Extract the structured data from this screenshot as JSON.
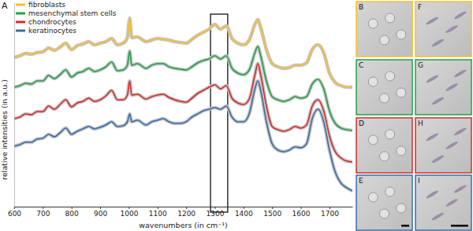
{
  "chart_data": {
    "type": "line",
    "panel_label": "A",
    "x_label": "wavenumbers (in cm⁻¹)",
    "y_label": "relative intensities (in a.u.)",
    "xlim": [
      600,
      1780
    ],
    "xticks": [
      600,
      700,
      800,
      900,
      1000,
      1100,
      1200,
      1300,
      1400,
      1500,
      1600,
      1700
    ],
    "ylim": [
      0,
      260
    ],
    "tick_labels": "x",
    "legend": "upper left",
    "highlight_range": [
      1285,
      1345
    ],
    "x": [
      600,
      620,
      640,
      660,
      680,
      700,
      720,
      740,
      760,
      780,
      800,
      820,
      840,
      860,
      880,
      900,
      920,
      940,
      960,
      980,
      995,
      1003,
      1010,
      1030,
      1060,
      1080,
      1100,
      1120,
      1140,
      1160,
      1180,
      1200,
      1220,
      1240,
      1260,
      1280,
      1300,
      1320,
      1340,
      1360,
      1380,
      1400,
      1420,
      1440,
      1450,
      1460,
      1480,
      1500,
      1520,
      1540,
      1560,
      1580,
      1600,
      1620,
      1640,
      1660,
      1680,
      1700,
      1720,
      1740,
      1760,
      1780
    ],
    "series": [
      {
        "name": "fibroblasts",
        "color": "#f6be2c",
        "values": [
          190,
          192,
          195,
          194,
          196,
          197,
          202,
          199,
          203,
          208,
          200,
          205,
          207,
          210,
          206,
          208,
          210,
          214,
          206,
          208,
          215,
          240,
          215,
          216,
          210,
          212,
          214,
          213,
          212,
          210,
          209,
          208,
          213,
          218,
          222,
          226,
          232,
          226,
          230,
          214,
          208,
          206,
          212,
          232,
          238,
          228,
          200,
          182,
          178,
          176,
          177,
          180,
          180,
          183,
          200,
          206,
          196,
          170,
          158,
          154,
          152,
          152
        ]
      },
      {
        "name": "mesenchymal stem cells",
        "color": "#23a04a",
        "values": [
          152,
          154,
          157,
          156,
          160,
          160,
          167,
          163,
          168,
          174,
          165,
          170,
          172,
          176,
          172,
          174,
          178,
          184,
          173,
          174,
          180,
          198,
          180,
          182,
          176,
          180,
          182,
          182,
          178,
          176,
          175,
          174,
          178,
          183,
          186,
          188,
          192,
          188,
          192,
          176,
          170,
          168,
          174,
          196,
          204,
          192,
          160,
          140,
          136,
          134,
          136,
          140,
          138,
          140,
          156,
          162,
          150,
          122,
          106,
          100,
          98,
          97
        ]
      },
      {
        "name": "chondrocytes",
        "color": "#d62b2b",
        "values": [
          112,
          114,
          118,
          117,
          121,
          121,
          128,
          124,
          130,
          136,
          127,
          132,
          134,
          138,
          134,
          136,
          141,
          148,
          136,
          136,
          142,
          160,
          142,
          143,
          137,
          140,
          142,
          143,
          139,
          136,
          134,
          133,
          138,
          144,
          148,
          152,
          155,
          150,
          154,
          138,
          132,
          130,
          137,
          168,
          182,
          168,
          128,
          102,
          98,
          96,
          98,
          102,
          100,
          104,
          128,
          136,
          122,
          90,
          70,
          62,
          58,
          57
        ]
      },
      {
        "name": "keratinocytes",
        "color": "#3a6ea8",
        "values": [
          77,
          79,
          82,
          82,
          86,
          87,
          92,
          89,
          94,
          100,
          92,
          96,
          99,
          102,
          99,
          101,
          104,
          108,
          102,
          103,
          108,
          118,
          108,
          110,
          104,
          108,
          110,
          112,
          108,
          106,
          106,
          108,
          114,
          118,
          122,
          124,
          126,
          124,
          128,
          114,
          108,
          108,
          118,
          150,
          160,
          148,
          108,
          80,
          72,
          70,
          72,
          76,
          75,
          80,
          112,
          124,
          108,
          72,
          44,
          30,
          24,
          20
        ]
      }
    ]
  },
  "image_panels": [
    {
      "label": "B",
      "color": "#f6be2c"
    },
    {
      "label": "C",
      "color": "#23a04a"
    },
    {
      "label": "D",
      "color": "#d62b2b"
    },
    {
      "label": "E",
      "color": "#3a6ea8"
    },
    {
      "label": "F",
      "color": "#f6be2c"
    },
    {
      "label": "G",
      "color": "#23a04a"
    },
    {
      "label": "H",
      "color": "#d62b2b"
    },
    {
      "label": "I",
      "color": "#3a6ea8"
    }
  ]
}
